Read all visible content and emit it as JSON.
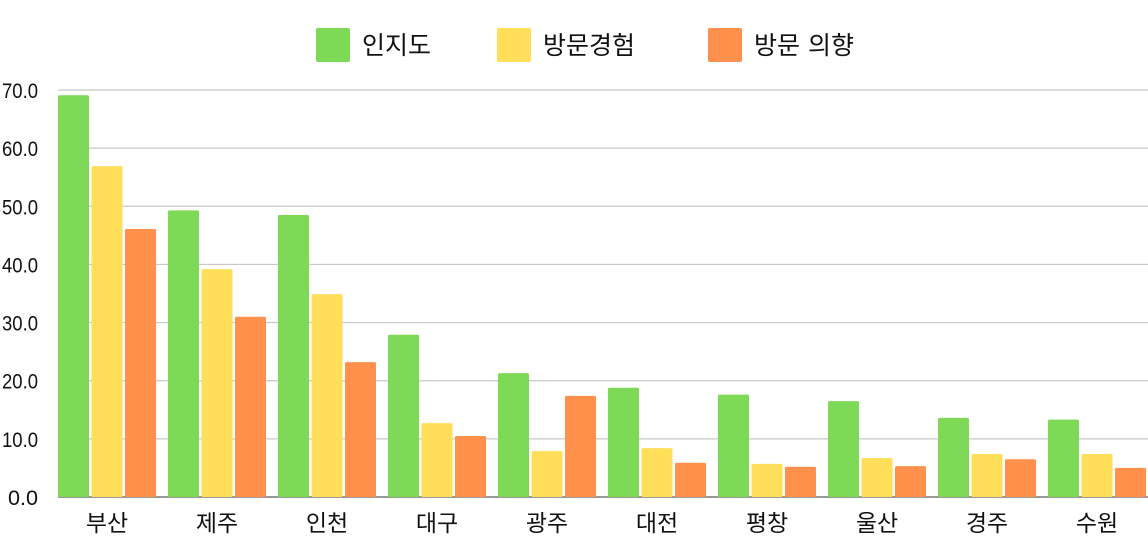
{
  "chart_data": {
    "type": "bar",
    "title": "",
    "xlabel": "",
    "ylabel": "",
    "ylim": [
      0,
      70
    ],
    "yticks": [
      "0.0",
      "10.0",
      "20.0",
      "30.0",
      "40.0",
      "50.0",
      "60.0",
      "70.0"
    ],
    "grid": true,
    "legend_placement": "top-center",
    "categories": [
      "부산",
      "제주",
      "인천",
      "대구",
      "광주",
      "대전",
      "평창",
      "울산",
      "경주",
      "수원"
    ],
    "series": [
      {
        "name": "인지도",
        "color": "#7ED957",
        "values": [
          69.1,
          49.3,
          48.5,
          27.9,
          21.3,
          18.8,
          17.6,
          16.5,
          13.6,
          13.3
        ]
      },
      {
        "name": "방문경험",
        "color": "#FFDE59",
        "values": [
          56.9,
          39.2,
          34.9,
          12.7,
          7.9,
          8.4,
          5.7,
          6.7,
          7.4,
          7.4
        ]
      },
      {
        "name": "방문 의향",
        "color": "#FF914D",
        "values": [
          46.1,
          31.0,
          23.2,
          10.5,
          17.4,
          5.9,
          5.2,
          5.3,
          6.5,
          5.0
        ]
      }
    ]
  }
}
